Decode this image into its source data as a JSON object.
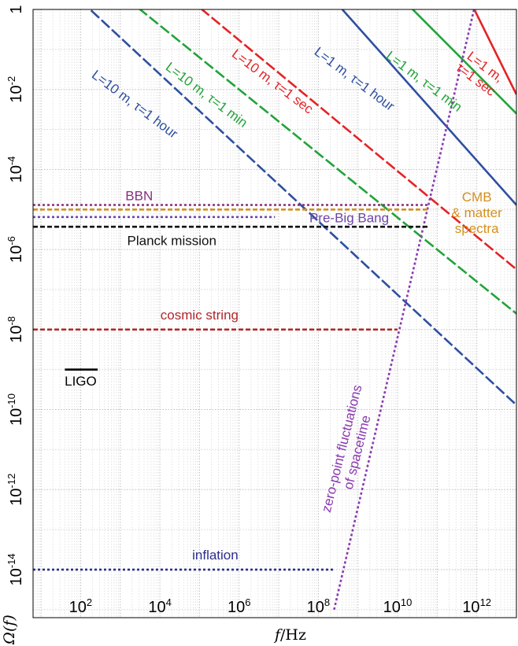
{
  "chart_data": {
    "type": "line",
    "title": "",
    "xlabel_var": "f",
    "xlabel_unit": "/Hz",
    "ylabel": "Ω(f)",
    "x_scale": "log",
    "y_scale": "log",
    "xlim": [
      6.3,
      10000000000000.0
    ],
    "ylim": [
      6.3e-16,
      1.0
    ],
    "grid": true,
    "x_ticks": [
      {
        "base": "10",
        "exp": "2",
        "value": 100.0
      },
      {
        "base": "10",
        "exp": "4",
        "value": 10000.0
      },
      {
        "base": "10",
        "exp": "6",
        "value": 1000000.0
      },
      {
        "base": "10",
        "exp": "8",
        "value": 100000000.0
      },
      {
        "base": "10",
        "exp": "10",
        "value": 10000000000.0
      },
      {
        "base": "10",
        "exp": "12",
        "value": 1000000000000.0
      }
    ],
    "y_ticks": [
      {
        "base": "1",
        "exp": "",
        "value": 1
      },
      {
        "base": "10",
        "exp": "-2",
        "value": 0.01
      },
      {
        "base": "10",
        "exp": "-4",
        "value": 0.0001
      },
      {
        "base": "10",
        "exp": "-6",
        "value": 1e-06
      },
      {
        "base": "10",
        "exp": "-8",
        "value": 1e-08
      },
      {
        "base": "10",
        "exp": "-10",
        "value": 1e-10
      },
      {
        "base": "10",
        "exp": "-12",
        "value": 1e-12
      },
      {
        "base": "10",
        "exp": "-14",
        "value": 1e-14
      }
    ],
    "series": [
      {
        "name": "L=10 m, τ=1 hour",
        "color": "#2e4fa0",
        "dash": "long",
        "x": [
          30,
          10000000000000.0
        ],
        "y": [
          5.0,
          1.3e-10
        ]
      },
      {
        "name": "L=10 m, τ=1 min",
        "color": "#22a33a",
        "dash": "long",
        "x": [
          800,
          10000000000000.0
        ],
        "y": [
          3.0,
          2.5e-08
        ]
      },
      {
        "name": "L=10 m, τ=1 sec",
        "color": "#e42326",
        "dash": "long",
        "x": [
          30000,
          10000000000000.0
        ],
        "y": [
          3.0,
          3.2e-07
        ]
      },
      {
        "name": "L=1 m, τ=1 hour",
        "color": "#2e4fa0",
        "dash": "solid",
        "x": [
          150000000.0,
          10000000000000.0
        ],
        "y": [
          3.0,
          1.3e-05
        ]
      },
      {
        "name": "L=1 m, τ=1 min",
        "color": "#22a33a",
        "dash": "solid",
        "x": [
          8000000000.0,
          10000000000000.0
        ],
        "y": [
          3.0,
          0.0025
        ]
      },
      {
        "name": "L=1 m, τ=1 sec",
        "color": "#e42326",
        "dash": "solid",
        "x": [
          500000000000.0,
          10000000000000.0
        ],
        "y": [
          3.0,
          0.0075
        ]
      },
      {
        "name": "zero-point fluctuations of spacetime",
        "color": "#8a3ab0",
        "dash": "dotted",
        "x": [
          250000000.0,
          1100000000000.0
        ],
        "y": [
          1e-15,
          3.0
        ]
      },
      {
        "name": "BBN",
        "color": "#86307f",
        "dash": "dotted",
        "x": [
          6.3,
          60000000000.0
        ],
        "y": [
          1.3e-05,
          1.3e-05
        ]
      },
      {
        "name": "CMB & matter spectra",
        "color": "#d4901e",
        "dash": "short",
        "x": [
          6.3,
          60000000000.0
        ],
        "y": [
          1e-05,
          1e-05
        ]
      },
      {
        "name": "Pre-Big Bang",
        "color": "#6c46a8",
        "dash": "dotted",
        "x": [
          6.3,
          8000000.0
        ],
        "y": [
          6.5e-06,
          6.5e-06
        ]
      },
      {
        "name": "Planck mission",
        "color": "#111111",
        "dash": "short",
        "x": [
          6.3,
          60000000000.0
        ],
        "y": [
          3.7e-06,
          3.7e-06
        ]
      },
      {
        "name": "cosmic string",
        "color": "#b0282c",
        "dash": "short",
        "x": [
          6.3,
          10000000000.0
        ],
        "y": [
          1e-08,
          1e-08
        ]
      },
      {
        "name": "LIGO",
        "color": "#000000",
        "dash": "solid",
        "x": [
          40,
          270
        ],
        "y": [
          1e-09,
          1e-09
        ]
      },
      {
        "name": "inflation",
        "color": "#2c2e8e",
        "dash": "dotted",
        "x": [
          6.3,
          250000000.0
        ],
        "y": [
          1e-14,
          1e-14
        ]
      }
    ],
    "annotations": [
      {
        "lines": [
          "L=10 m, τ=1 hour"
        ],
        "color": "#2e4fa0",
        "x": 2000.0,
        "y": 0.0035,
        "rotate": 37
      },
      {
        "lines": [
          "L=10 m, τ=1 min"
        ],
        "color": "#22a33a",
        "x": 130000.0,
        "y": 0.006,
        "rotate": 37
      },
      {
        "lines": [
          "L=10 m, τ=1 sec"
        ],
        "color": "#e42326",
        "x": 6000000.0,
        "y": 0.013,
        "rotate": 37
      },
      {
        "lines": [
          "L=1 m, τ=1 hour"
        ],
        "color": "#2e4fa0",
        "x": 700000000.0,
        "y": 0.015,
        "rotate": 37
      },
      {
        "lines": [
          "L=1 m, τ=1 min"
        ],
        "color": "#22a33a",
        "x": 40000000000.0,
        "y": 0.013,
        "rotate": 37
      },
      {
        "lines": [
          "L=1 m,",
          "τ=1 sec"
        ],
        "color": "#e42326",
        "x": 1400000000000.0,
        "y": 0.03,
        "rotate": 37
      },
      {
        "lines": [
          "zero-point fluctuations",
          "of spacetime"
        ],
        "color": "#8a3ab0",
        "x": 500000000.0,
        "y": 1e-11,
        "rotate": -76
      },
      {
        "lines": [
          "BBN"
        ],
        "color": "#86307f",
        "x": 3000.0,
        "y": 1.7e-05,
        "rotate": 0
      },
      {
        "lines": [
          "CMB",
          "& matter",
          "spectra"
        ],
        "color": "#d4901e",
        "x": 1000000000000.0,
        "y": 1.6e-05,
        "rotate": 0
      },
      {
        "lines": [
          "Pre-Big  Bang"
        ],
        "color": "#6c46a8",
        "x": 600000000.0,
        "y": 4.8e-06,
        "rotate": 0
      },
      {
        "lines": [
          "Planck mission"
        ],
        "color": "#111111",
        "x": 20000.0,
        "y": 1.3e-06,
        "rotate": 0
      },
      {
        "lines": [
          "cosmic string"
        ],
        "color": "#b0282c",
        "x": 100000.0,
        "y": 1.8e-08,
        "rotate": 0
      },
      {
        "lines": [
          "LIGO"
        ],
        "color": "#000000",
        "x": 100.0,
        "y": 4e-10,
        "rotate": 0
      },
      {
        "lines": [
          "inflation"
        ],
        "color": "#2c2e8e",
        "x": 250000.0,
        "y": 1.8e-14,
        "rotate": 0
      }
    ]
  }
}
